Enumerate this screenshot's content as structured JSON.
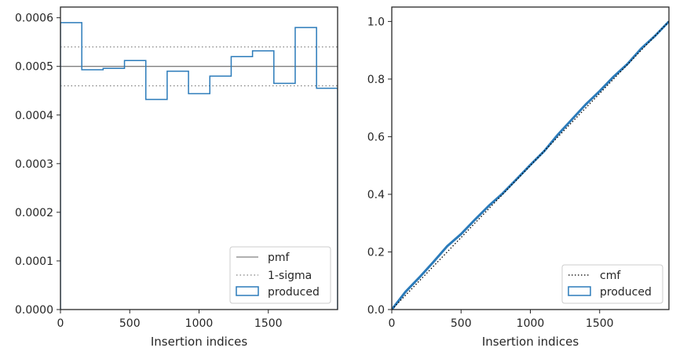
{
  "chart_data": [
    {
      "type": "line",
      "xlabel": "Insertion indices",
      "ylabel": "",
      "xlim": [
        0,
        2000
      ],
      "ylim": [
        0,
        0.000622
      ],
      "xticks": [
        0,
        500,
        1000,
        1500
      ],
      "xtick_labels": [
        "0",
        "500",
        "1000",
        "1500"
      ],
      "yticks": [
        0,
        0.0001,
        0.0002,
        0.0003,
        0.0004,
        0.0005,
        0.0006
      ],
      "ytick_labels": [
        "0.0000",
        "0.0001",
        "0.0002",
        "0.0003",
        "0.0004",
        "0.0005",
        "0.0006"
      ],
      "legend_position": "lower-right",
      "pmf": {
        "name": "pmf",
        "value": 0.0005,
        "color": "#808080"
      },
      "sigma": {
        "name": "1-sigma",
        "values": [
          0.00046,
          0.00054
        ],
        "color": "#808080"
      },
      "histogram": {
        "name": "produced",
        "color": "#2b7bba",
        "bin_edges": [
          0,
          154,
          308,
          462,
          616,
          770,
          924,
          1078,
          1232,
          1386,
          1540,
          1694,
          1848,
          2000
        ],
        "values": [
          0.00059,
          0.000493,
          0.000496,
          0.000512,
          0.000432,
          0.00049,
          0.000444,
          0.00048,
          0.00052,
          0.000532,
          0.000465,
          0.00058,
          0.000455
        ]
      }
    },
    {
      "type": "line",
      "xlabel": "Insertion indices",
      "ylabel": "",
      "xlim": [
        0,
        2000
      ],
      "ylim": [
        0,
        1.05
      ],
      "xticks": [
        0,
        500,
        1000,
        1500
      ],
      "xtick_labels": [
        "0",
        "500",
        "1000",
        "1500"
      ],
      "yticks": [
        0,
        0.2,
        0.4,
        0.6,
        0.8,
        1.0
      ],
      "ytick_labels": [
        "0.0",
        "0.2",
        "0.4",
        "0.6",
        "0.8",
        "1.0"
      ],
      "legend_position": "lower-right",
      "cmf": {
        "name": "cmf",
        "x": [
          0,
          2000
        ],
        "y": [
          0,
          1.0
        ],
        "color": "#000000"
      },
      "produced": {
        "name": "produced",
        "color": "#2b7bba",
        "x": [
          0,
          100,
          200,
          300,
          400,
          500,
          600,
          700,
          800,
          900,
          1000,
          1100,
          1200,
          1300,
          1400,
          1500,
          1600,
          1700,
          1800,
          1900,
          2000
        ],
        "y": [
          0,
          0.062,
          0.112,
          0.165,
          0.22,
          0.262,
          0.312,
          0.36,
          0.403,
          0.452,
          0.502,
          0.55,
          0.608,
          0.66,
          0.712,
          0.758,
          0.808,
          0.852,
          0.906,
          0.95,
          1.0
        ]
      }
    }
  ]
}
